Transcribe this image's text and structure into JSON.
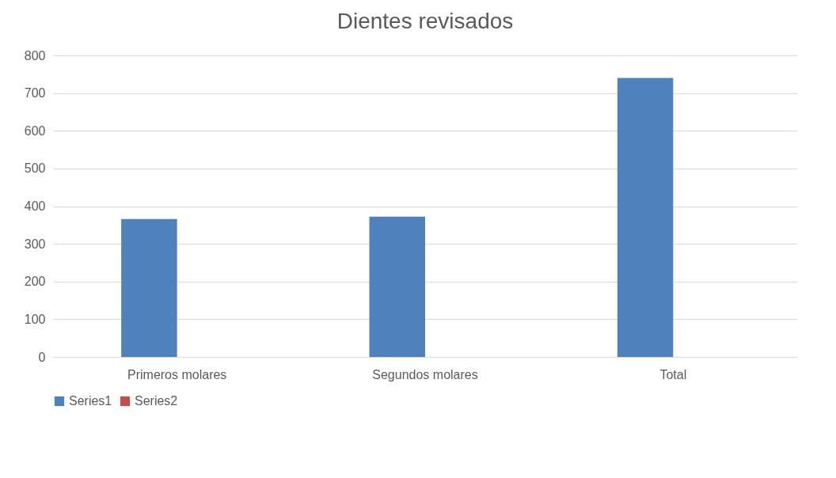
{
  "chart_data": {
    "type": "bar",
    "title": "Dientes revisados",
    "categories": [
      "Primeros molares",
      "Segundos molares",
      "Total"
    ],
    "series": [
      {
        "name": "Series1",
        "color": "#4f81bd",
        "values": [
          366,
          372,
          740
        ]
      },
      {
        "name": "Series2",
        "color": "#c0504d",
        "values": [
          null,
          null,
          null
        ]
      }
    ],
    "ylim": [
      0,
      800
    ],
    "yticks": [
      0,
      100,
      200,
      300,
      400,
      500,
      600,
      700,
      800
    ],
    "grid": "y",
    "legend": "bottom"
  }
}
